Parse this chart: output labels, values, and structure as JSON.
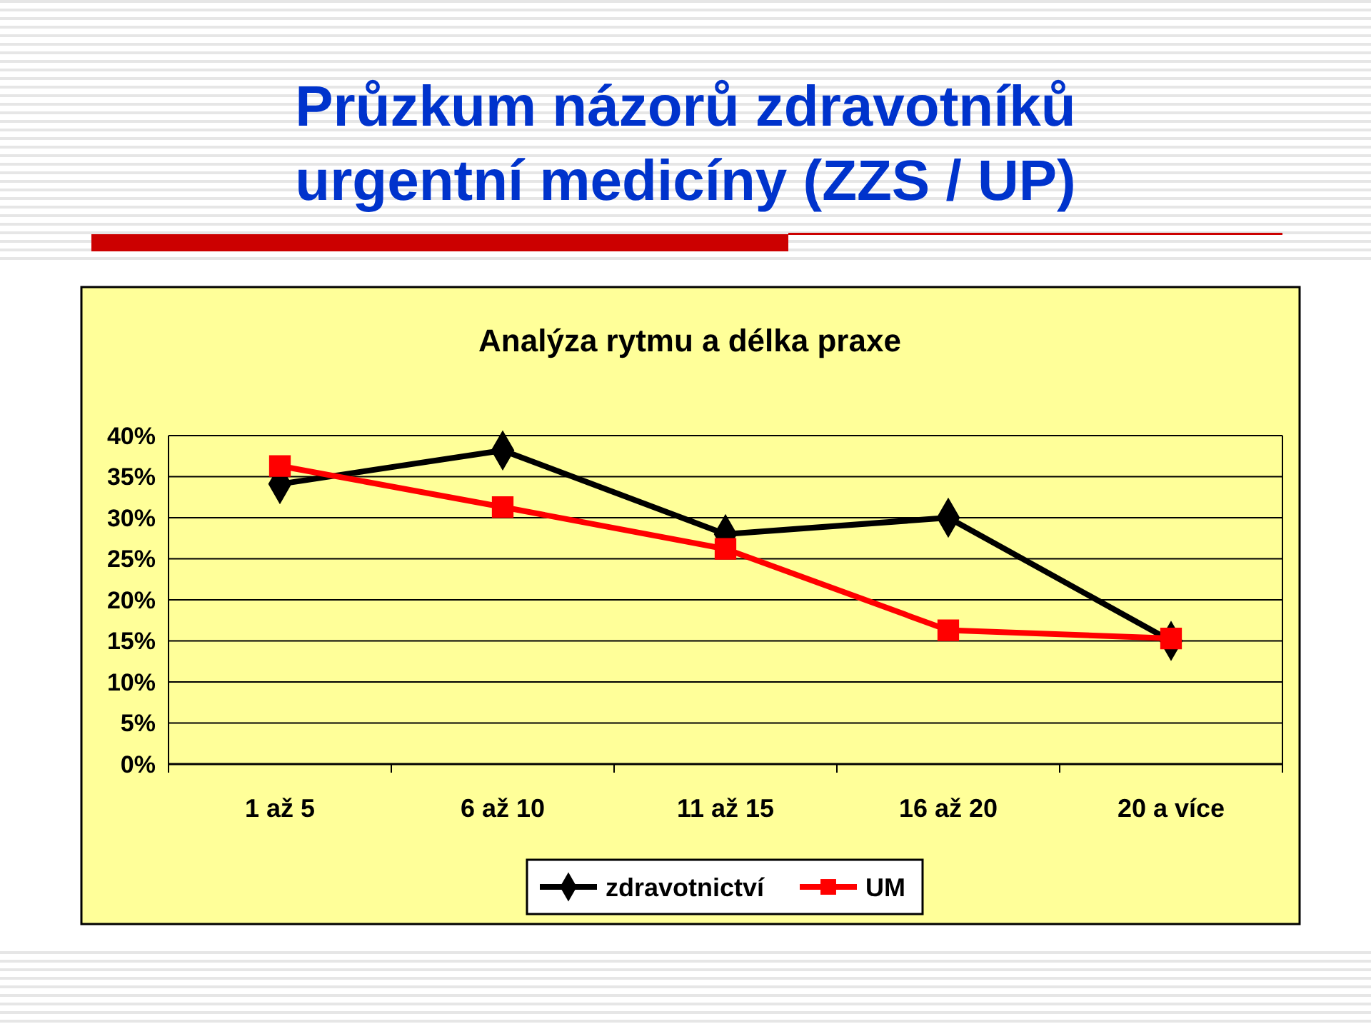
{
  "chart_data": {
    "type": "line",
    "title": "Průzkum názorů zdravotníků urgentní medicíny (ZZS / UP)",
    "subtitle": "Analýza rytmu a délka praxe",
    "categories": [
      "1 až 5",
      "6 až 10",
      "11 až 15",
      "16 až 20",
      "20 a více"
    ],
    "series": [
      {
        "name": "zdravotnictví",
        "color": "#000000",
        "marker": "diamond",
        "values": [
          34.1,
          38.2,
          28.0,
          30.0,
          15.0
        ]
      },
      {
        "name": "UM",
        "color": "#ff0000",
        "marker": "square",
        "values": [
          36.3,
          31.3,
          26.2,
          16.3,
          15.3
        ]
      }
    ],
    "ylim": [
      0,
      40
    ],
    "yticks": [
      {
        "value": 0,
        "label": "0%"
      },
      {
        "value": 5,
        "label": "5%"
      },
      {
        "value": 10,
        "label": "10%"
      },
      {
        "value": 15,
        "label": "15%"
      },
      {
        "value": 20,
        "label": "20%"
      },
      {
        "value": 25,
        "label": "25%"
      },
      {
        "value": 30,
        "label": "30%"
      },
      {
        "value": 35,
        "label": "35%"
      },
      {
        "value": 40,
        "label": "40%"
      }
    ],
    "grid": "y",
    "legend": "bottom",
    "line_style": "solid"
  }
}
